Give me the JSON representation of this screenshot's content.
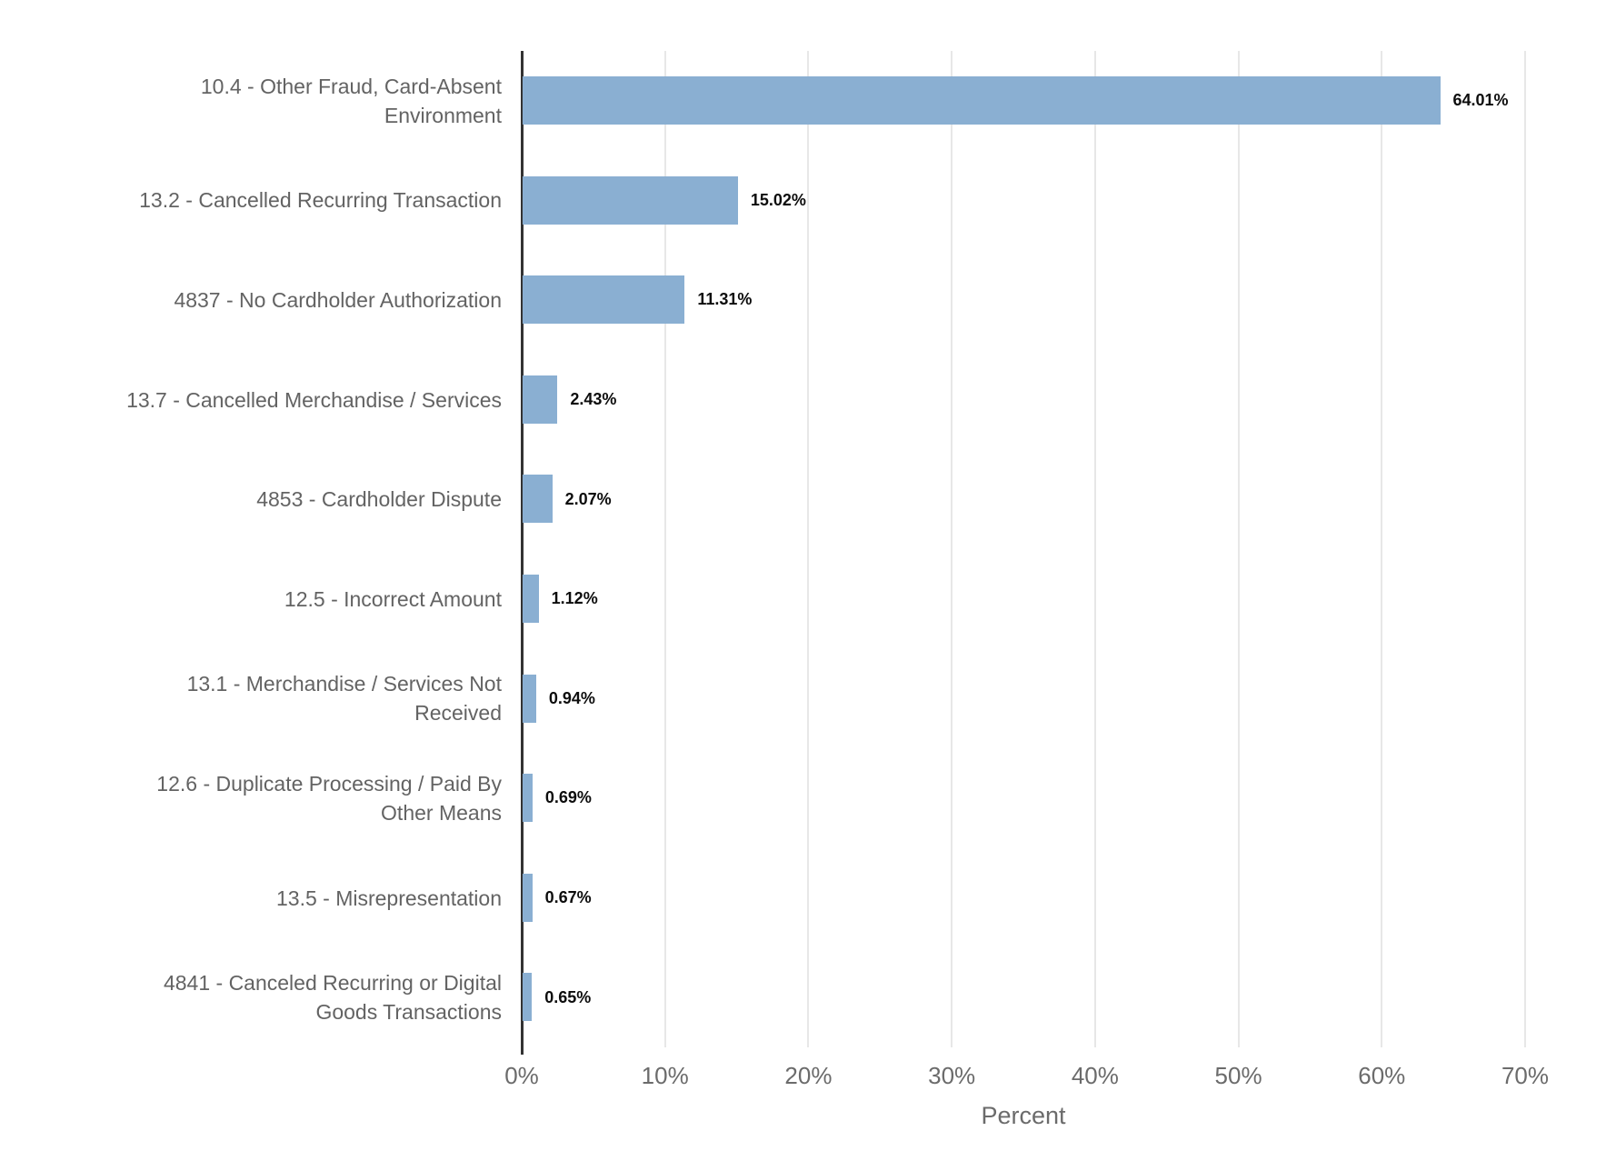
{
  "chart_data": {
    "type": "bar",
    "orientation": "horizontal",
    "title": "",
    "xlabel": "Percent",
    "ylabel": "",
    "xlim": [
      0,
      70
    ],
    "grid": "vertical",
    "legend": "none",
    "categories": [
      "10.4 - Other Fraud, Card-Absent Environment",
      "13.2 - Cancelled Recurring Transaction",
      "4837 - No Cardholder Authorization",
      "13.7 - Cancelled Merchandise / Services",
      "4853 - Cardholder Dispute",
      "12.5 - Incorrect Amount",
      "13.1 - Merchandise / Services Not Received",
      "12.6 - Duplicate Processing / Paid By Other Means",
      "13.5 - Misrepresentation",
      "4841 - Canceled Recurring or Digital Goods Transactions"
    ],
    "values": [
      64.01,
      15.02,
      11.31,
      2.43,
      2.07,
      1.12,
      0.94,
      0.69,
      0.67,
      0.65
    ],
    "value_labels": [
      "64.01%",
      "15.02%",
      "11.31%",
      "2.43%",
      "2.07%",
      "1.12%",
      "0.94%",
      "0.69%",
      "0.67%",
      "0.65%"
    ],
    "x_tick_values": [
      0,
      10,
      20,
      30,
      40,
      50,
      60,
      70
    ],
    "x_tick_labels": [
      "0%",
      "10%",
      "20%",
      "30%",
      "40%",
      "50%",
      "60%",
      "70%"
    ],
    "colors": {
      "bar": "#8aafd2",
      "axis_line": "#333333",
      "gridline": "#e7e7e7",
      "category_label": "#636363",
      "tick_label": "#6b6b6b",
      "value_label": "#0d0d0d",
      "background": "#ffffff"
    }
  }
}
